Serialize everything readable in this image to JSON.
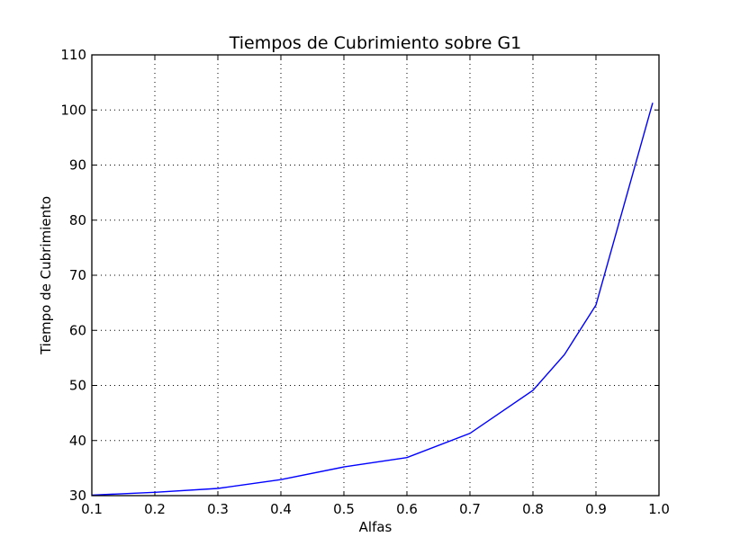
{
  "chart_data": {
    "type": "line",
    "title": "Tiempos de Cubrimiento sobre G1",
    "xlabel": "Alfas",
    "ylabel": "Tiempo de Cubrimiento",
    "xlim": [
      0.1,
      1.0
    ],
    "ylim": [
      30,
      110
    ],
    "xticks": [
      "0.1",
      "0.2",
      "0.3",
      "0.4",
      "0.5",
      "0.6",
      "0.7",
      "0.8",
      "0.9",
      "1.0"
    ],
    "yticks": [
      "30",
      "40",
      "50",
      "60",
      "70",
      "80",
      "90",
      "100",
      "110"
    ],
    "grid": true,
    "series": [
      {
        "color": "#0000ff",
        "x": [
          0.1,
          0.2,
          0.3,
          0.4,
          0.5,
          0.6,
          0.7,
          0.8,
          0.85,
          0.9,
          0.99
        ],
        "y": [
          30.1,
          30.6,
          31.3,
          32.9,
          35.2,
          36.9,
          41.3,
          49.1,
          55.6,
          64.6,
          101.3
        ]
      }
    ]
  }
}
